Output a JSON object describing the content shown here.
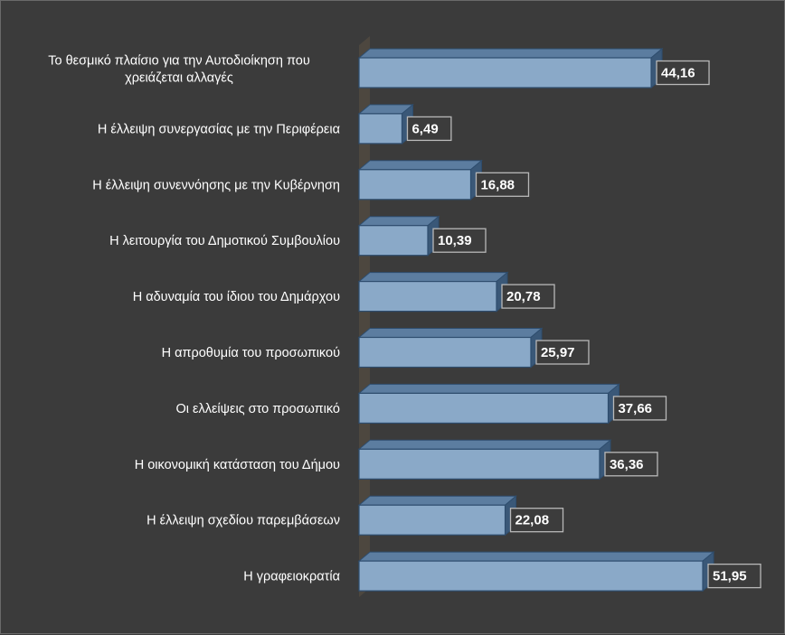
{
  "chart_data": {
    "type": "bar",
    "orientation": "horizontal",
    "categories": [
      "Το θεσμικό πλαίσιο για την  Αυτοδιοίκηση που χρειάζεται αλλαγές",
      "Η έλλειψη συνεργασίας  με την Περιφέρεια",
      "Η έλλειψη συνεννόησης  με την Κυβέρνηση",
      "Η λειτουργία του Δημοτικού Συμβουλίου",
      "Η αδυναμία του ίδιου του Δημάρχου",
      "Η απροθυμία του προσωπικού",
      "Οι ελλείψεις στο προσωπικό",
      "Η οικονομική κατάσταση του Δήμου",
      "Η έλλειψη σχεδίου παρεμβάσεων",
      "Η γραφειοκρατία"
    ],
    "values": [
      44.16,
      6.49,
      16.88,
      10.39,
      20.78,
      25.97,
      37.66,
      36.36,
      22.08,
      51.95
    ],
    "value_labels": [
      "44,16",
      "6,49",
      "16,88",
      "10,39",
      "20,78",
      "25,97",
      "37,66",
      "36,36",
      "22,08",
      "51,95"
    ],
    "xlim": [
      0,
      100
    ],
    "grid": false,
    "legend": "none",
    "style": "3d",
    "colors": {
      "background": "#3b3b3b",
      "bar_front": "#8aa9c8",
      "bar_top": "#5c7da0",
      "bar_side": "#3a5878",
      "bar_edge": "#2e4d6e",
      "wall": "#4d473f",
      "label_box_fill": "#3c3c3c",
      "label_box_border": "#b8b8b8",
      "text": "#ffffff"
    }
  }
}
